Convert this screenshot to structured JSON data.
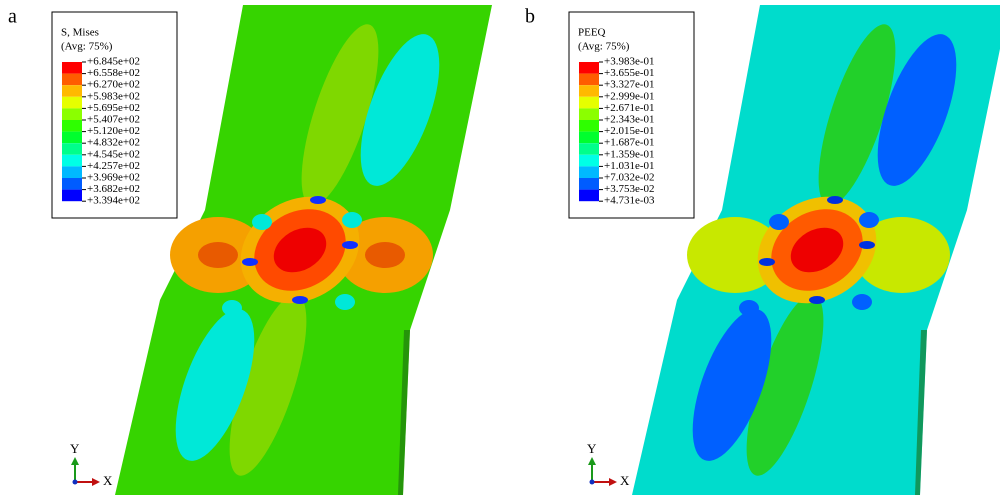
{
  "panels": [
    {
      "label": "a",
      "legend": {
        "title": "S, Mises",
        "subtitle": "(Avg: 75%)",
        "levels": [
          "+6.845e+02",
          "+6.558e+02",
          "+6.270e+02",
          "+5.983e+02",
          "+5.695e+02",
          "+5.407e+02",
          "+5.120e+02",
          "+4.832e+02",
          "+4.545e+02",
          "+4.257e+02",
          "+3.969e+02",
          "+3.682e+02",
          "+3.394e+02"
        ]
      },
      "triad": {
        "y": "Y",
        "x": "X"
      }
    },
    {
      "label": "b",
      "legend": {
        "title": "PEEQ",
        "subtitle": "(Avg: 75%)",
        "levels": [
          "+3.983e-01",
          "+3.655e-01",
          "+3.327e-01",
          "+2.999e-01",
          "+2.671e-01",
          "+2.343e-01",
          "+2.015e-01",
          "+1.687e-01",
          "+1.359e-01",
          "+1.031e-01",
          "+7.032e-02",
          "+3.753e-02",
          "+4.731e-03"
        ]
      },
      "triad": {
        "y": "Y",
        "x": "X"
      }
    }
  ]
}
